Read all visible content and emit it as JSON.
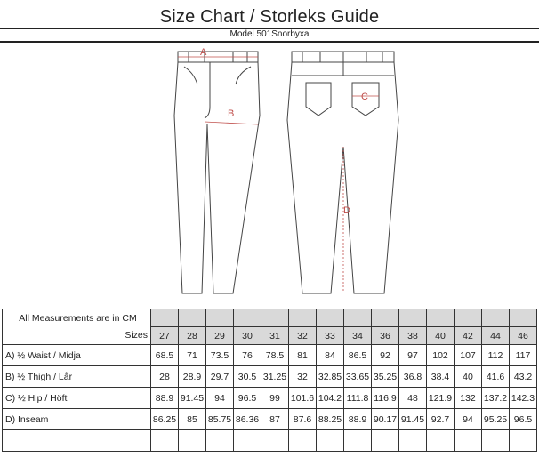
{
  "title": "Size Chart / Storleks Guide",
  "subtitle": "Model 501Snorbyxa",
  "diagram_labels": {
    "a": "A",
    "b": "B",
    "c": "C",
    "d": "D"
  },
  "table": {
    "unit_note": "All Measurements are in CM",
    "sizes_label": "Sizes",
    "sizes": [
      "27",
      "28",
      "29",
      "30",
      "31",
      "32",
      "33",
      "34",
      "36",
      "38",
      "40",
      "42",
      "44",
      "46"
    ],
    "rows": [
      {
        "label": "A)  ½ Waist / Midja",
        "values": [
          "68.5",
          "71",
          "73.5",
          "76",
          "78.5",
          "81",
          "84",
          "86.5",
          "92",
          "97",
          "102",
          "107",
          "112",
          "117"
        ]
      },
      {
        "label": "B) ½ Thigh / Lår",
        "values": [
          "28",
          "28.9",
          "29.7",
          "30.5",
          "31.25",
          "32",
          "32.85",
          "33.65",
          "35.25",
          "36.8",
          "38.4",
          "40",
          "41.6",
          "43.2"
        ]
      },
      {
        "label": "C) ½ Hip / Höft",
        "values": [
          "88.9",
          "91.45",
          "94",
          "96.5",
          "99",
          "101.6",
          "104.2",
          "111.8",
          "116.9",
          "48",
          "121.9",
          "132",
          "137.2",
          "142.3"
        ]
      },
      {
        "label": "D) Inseam",
        "values": [
          "86.25",
          "85",
          "85.75",
          "86.36",
          "87",
          "87.6",
          "88.25",
          "88.9",
          "90.17",
          "91.45",
          "92.7",
          "94",
          "95.25",
          "96.5"
        ]
      }
    ]
  },
  "colors": {
    "measure": "#c0504d",
    "header_fill": "#d9d9d9"
  }
}
